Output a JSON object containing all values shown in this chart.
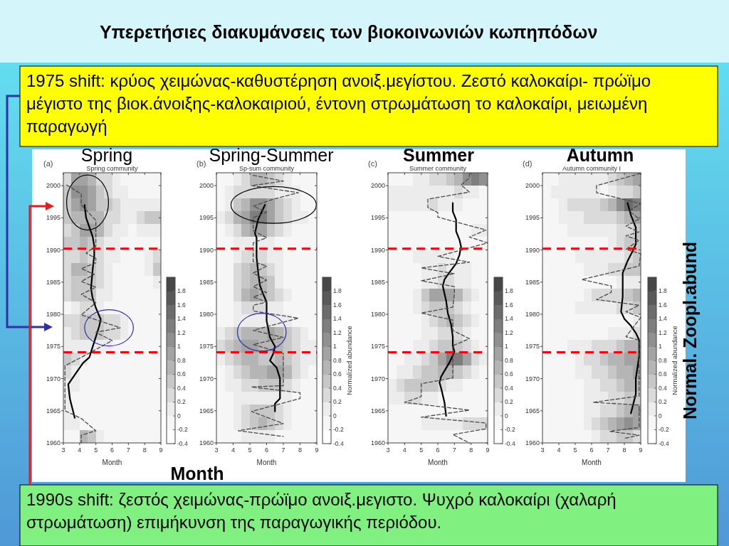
{
  "chart_data": [
    {
      "type": "other",
      "title": "Υπερετήσιες διακυμάνσεις των βιοκοινωνιών κωπηπόδων",
      "annotations": [
        "1975 shift: κρύος χειμώνας-καθυστέρηση ανοιξ.μεγίστου. Ζεστό καλοκαίρι- πρώϊμο μέγιστο της βιοκ.άνοιξης-καλοκαιριού, έντονη στρωμάτωση το καλοκαίρι, μειωμένη παραγωγή"
      ]
    },
    {
      "type": "heatmap",
      "title": "Spring",
      "subtitle": "Spring community",
      "xlabel": "Month",
      "annotations": [
        "(a)"
      ],
      "xlim": [
        3,
        9
      ],
      "ylim": [
        1960,
        2002
      ],
      "xticks": [
        3,
        4,
        5,
        6,
        7,
        8,
        9
      ],
      "yticks": [
        1960,
        1965,
        1970,
        1975,
        1980,
        1985,
        1990,
        1995,
        2000
      ],
      "clim": [
        -0.4,
        2
      ],
      "cticks": [
        -0.4,
        -0.2,
        0,
        0.2,
        0.4,
        0.6,
        0.8,
        1,
        1.2,
        1.4,
        1.6,
        1.8
      ],
      "cells": [
        [
          0.3,
          0.9,
          0.9,
          0.7,
          0.3,
          0.3,
          0.1,
          -0.1,
          -0.1,
          -0.1,
          -0.1,
          -0.1
        ],
        [
          0.5,
          1.1,
          1.1,
          0.9,
          0.5,
          0.3,
          0.1,
          0.1,
          -0.1,
          -0.1,
          -0.1,
          -0.1
        ],
        [
          0.5,
          0.9,
          1.1,
          0.9,
          0.5,
          0.5,
          0.3,
          0.1,
          0.1,
          0.1,
          0.1,
          0.1
        ],
        [
          0.5,
          0.7,
          0.7,
          0.7,
          0.7,
          0.3,
          0.3,
          0.1,
          0.1,
          0.3,
          0.5,
          0.5
        ],
        [
          0.3,
          0.5,
          0.9,
          0.9,
          0.7,
          0.3,
          0.1,
          0.1,
          -0.1,
          0.1,
          0.1,
          0.1
        ],
        [
          0.5,
          0.5,
          0.7,
          0.5,
          0.3,
          0.1,
          0.1,
          -0.1,
          -0.1,
          -0.1,
          -0.1,
          -0.1
        ],
        [
          0.3,
          0.3,
          0.5,
          0.3,
          0.3,
          0.1,
          0.1,
          -0.1,
          -0.1,
          -0.1,
          0.1,
          0.3
        ],
        [
          0.3,
          0.7,
          0.7,
          0.5,
          0.3,
          0.1,
          -0.1,
          -0.1,
          -0.1,
          -0.1,
          0.1,
          0.5
        ],
        [
          0.3,
          0.5,
          0.5,
          0.5,
          0.3,
          0.1,
          -0.1,
          -0.1,
          -0.1,
          -0.1,
          -0.1,
          0.1
        ],
        [
          0.3,
          0.5,
          0.5,
          0.5,
          0.1,
          0.1,
          -0.1,
          -0.1,
          -0.1,
          -0.1,
          -0.1,
          -0.1
        ],
        [
          -0.1,
          0.1,
          0.3,
          0.3,
          0.1,
          -0.1,
          -0.1,
          -0.1,
          -0.1,
          -0.1,
          -0.1,
          -0.1
        ],
        [
          0.3,
          0.3,
          0.5,
          0.5,
          0.5,
          0.3,
          0.3,
          0.1,
          -0.1,
          -0.1,
          -0.1,
          -0.1
        ],
        [
          0.1,
          0.3,
          0.5,
          0.5,
          0.5,
          0.3,
          0.3,
          0.1,
          -0.1,
          -0.1,
          -0.1,
          -0.1
        ],
        [
          0.1,
          0.1,
          0.1,
          0.1,
          0.1,
          0.1,
          -0.1,
          -0.1,
          -0.1,
          -0.1,
          -0.1,
          -0.1
        ],
        [
          0.5,
          0.3,
          0.1,
          -0.1,
          -0.1,
          -0.1,
          -0.1,
          -0.1,
          -0.1,
          -0.1,
          -0.1,
          -0.1
        ],
        [
          0.3,
          0.1,
          -0.1,
          -0.1,
          -0.1,
          -0.1,
          -0.1,
          -0.1,
          -0.1,
          -0.1,
          -0.1,
          -0.1
        ],
        [
          0.1,
          0.1,
          -0.1,
          -0.1,
          -0.1,
          -0.1,
          -0.1,
          -0.1,
          -0.1,
          -0.1,
          -0.1,
          -0.1
        ],
        [
          0.1,
          -0.1,
          -0.1,
          -0.1,
          -0.1,
          -0.1,
          -0.1,
          -0.1,
          -0.1,
          -0.1,
          -0.1,
          -0.1
        ],
        [
          0.1,
          -0.1,
          -0.1,
          -0.1,
          -0.1,
          -0.1,
          -0.1,
          -0.1,
          -0.1,
          -0.1,
          -0.1,
          -0.1
        ],
        [
          0.1,
          0.1,
          -0.1,
          -0.1,
          -0.1,
          -0.1,
          -0.1,
          -0.1,
          -0.1,
          -0.1,
          -0.1,
          -0.1
        ],
        [
          -0.1,
          -0.1,
          0.7,
          0.5,
          0.1,
          -0.1,
          -0.1,
          -0.1,
          -0.1,
          -0.1,
          -0.1,
          -0.1
        ]
      ],
      "series": [
        {
          "type": "line",
          "color": "#000000",
          "line_style": "solid",
          "x": [
            3.7,
            3.4,
            3.3,
            3.6,
            4.2,
            4.6,
            4.9,
            5.2,
            5.3,
            5.0,
            4.8,
            4.7,
            4.8,
            4.9,
            4.9,
            4.8,
            4.4,
            4.3
          ],
          "values": [
            1963.9,
            1966.9,
            1969.1,
            1970.2,
            1972.4,
            1973.3,
            1975.7,
            1978.1,
            1979.2,
            1981,
            1982.5,
            1984,
            1986.9,
            1989.1,
            1990.6,
            1992.1,
            1995,
            1997
          ]
        },
        {
          "type": "line",
          "color": "#4a4a4a",
          "line_style": "dashed",
          "x": [
            3.2,
            4.1,
            4.1,
            5.0,
            5.0,
            4.4,
            5.0,
            5.0,
            4.1,
            4.9,
            4.1,
            5.0,
            4.1,
            5.0,
            4.1,
            6.5,
            5.0,
            6.0,
            4.1,
            3.1,
            3.1,
            4.1,
            5.0,
            4.1,
            4.1
          ],
          "values": [
            2000.1,
            1998.7,
            1997,
            1994.6,
            1990.6,
            1989.5,
            1988.7,
            1988,
            1987.1,
            1986.2,
            1985.1,
            1984.2,
            1983.1,
            1981.8,
            1979.9,
            1977.9,
            1977.2,
            1975.9,
            1973.3,
            1972,
            1965,
            1963.8,
            1961.9,
            1961.2,
            1960
          ]
        }
      ],
      "ref_lines": [
        {
          "axis": "y",
          "value": 1990.2,
          "color": "#ff0000",
          "line_style": "dashed"
        },
        {
          "axis": "y",
          "value": 1974.1,
          "color": "#ff0000",
          "line_style": "dashed"
        }
      ]
    },
    {
      "type": "heatmap",
      "title": "Spring-Summer",
      "subtitle": "Sp-sum community",
      "xlabel": "Month",
      "clabel": "Normalized abundance",
      "annotations": [
        "(b)"
      ],
      "xlim": [
        3,
        9
      ],
      "ylim": [
        1960,
        2002
      ],
      "xticks": [
        3,
        4,
        5,
        6,
        7,
        8,
        9
      ],
      "yticks": [
        1960,
        1965,
        1970,
        1975,
        1980,
        1985,
        1990,
        1995,
        2000
      ],
      "clim": [
        -0.4,
        2
      ],
      "cticks": [
        -0.4,
        -0.2,
        0,
        0.2,
        0.4,
        0.6,
        0.8,
        1,
        1.2,
        1.4,
        1.6,
        1.8
      ],
      "cells": [
        [
          -0.1,
          -0.1,
          0.1,
          0.3,
          0.7,
          0.7,
          0.5,
          0.3,
          0.1,
          -0.1,
          -0.1,
          -0.1
        ],
        [
          -0.1,
          0.1,
          0.3,
          0.3,
          0.3,
          0.3,
          0.3,
          0.1,
          0.1,
          0.1,
          -0.1,
          -0.1
        ],
        [
          -0.1,
          0.1,
          0.5,
          0.7,
          1.1,
          1.1,
          0.9,
          0.5,
          0.3,
          0.1,
          -0.1,
          -0.1
        ],
        [
          0.1,
          0.3,
          0.7,
          0.9,
          1.3,
          1.3,
          0.9,
          0.5,
          0.3,
          0.1,
          0.1,
          -0.1
        ],
        [
          -0.1,
          0.1,
          0.3,
          0.7,
          0.9,
          0.9,
          0.5,
          0.3,
          0.1,
          -0.1,
          -0.1,
          -0.1
        ],
        [
          -0.1,
          -0.1,
          0.1,
          0.1,
          0.1,
          0.1,
          0.1,
          -0.1,
          -0.1,
          -0.1,
          -0.1,
          -0.1
        ],
        [
          -0.1,
          -0.1,
          0.1,
          0.3,
          0.3,
          0.3,
          0.1,
          0.1,
          -0.1,
          -0.1,
          -0.1,
          -0.1
        ],
        [
          -0.1,
          -0.1,
          0.3,
          0.5,
          0.7,
          0.5,
          0.3,
          0.1,
          -0.1,
          -0.1,
          -0.1,
          -0.1
        ],
        [
          -0.1,
          -0.1,
          0.3,
          0.5,
          0.7,
          0.7,
          0.5,
          0.1,
          -0.1,
          -0.1,
          -0.1,
          -0.1
        ],
        [
          -0.1,
          -0.1,
          0.3,
          0.7,
          0.9,
          0.7,
          0.5,
          0.3,
          0.1,
          -0.1,
          -0.1,
          -0.1
        ],
        [
          -0.1,
          -0.1,
          0.1,
          0.3,
          0.3,
          0.3,
          0.1,
          0.1,
          -0.1,
          -0.1,
          -0.1,
          -0.1
        ],
        [
          -0.1,
          -0.1,
          0.1,
          0.1,
          0.1,
          0.1,
          0.1,
          0.1,
          0.1,
          -0.1,
          -0.1,
          -0.1
        ],
        [
          0.1,
          0.3,
          0.5,
          0.7,
          0.7,
          0.7,
          0.9,
          0.7,
          0.5,
          0.3,
          0.1,
          -0.1
        ],
        [
          0.3,
          0.5,
          0.7,
          0.9,
          0.9,
          0.7,
          0.7,
          0.7,
          0.5,
          0.3,
          0.1,
          0.1
        ],
        [
          0.1,
          0.3,
          0.5,
          0.7,
          0.7,
          0.5,
          0.5,
          0.7,
          0.5,
          0.3,
          0.1,
          0.1
        ],
        [
          -0.1,
          0.1,
          0.3,
          0.5,
          0.7,
          0.7,
          0.9,
          0.9,
          0.7,
          0.3,
          0.1,
          -0.1
        ],
        [
          -0.1,
          0.1,
          0.1,
          0.3,
          0.3,
          0.5,
          0.5,
          0.5,
          0.3,
          0.1,
          -0.1,
          -0.1
        ],
        [
          -0.1,
          -0.1,
          0.1,
          0.1,
          0.1,
          0.1,
          0.1,
          0.1,
          0.1,
          -0.1,
          -0.1,
          -0.1
        ],
        [
          -0.1,
          -0.1,
          0.1,
          0.3,
          0.5,
          0.5,
          0.5,
          0.3,
          0.1,
          -0.1,
          -0.1,
          -0.1
        ],
        [
          -0.1,
          -0.1,
          0.1,
          0.3,
          0.5,
          0.7,
          0.5,
          0.3,
          0.1,
          -0.1,
          -0.1,
          -0.1
        ],
        [
          -0.1,
          -0.1,
          -0.1,
          0.1,
          0.1,
          0.1,
          0.1,
          -0.1,
          -0.1,
          -0.1,
          -0.1,
          -0.1
        ]
      ],
      "series": [
        {
          "type": "line",
          "color": "#000000",
          "line_style": "solid",
          "x": [
            6.5,
            6.5,
            6.8,
            6.8,
            6.6,
            6.2,
            6.4,
            6.5,
            6.2,
            6.0,
            6.0,
            6.0,
            5.8,
            5.6,
            5.5,
            5.4,
            5.4,
            5.3,
            5.5,
            5.7,
            5.9
          ],
          "values": [
            1964.9,
            1966.1,
            1966.9,
            1970,
            1971.7,
            1972.8,
            1973.9,
            1975,
            1976.4,
            1979,
            1980.1,
            1981.9,
            1983.1,
            1984.5,
            1986.4,
            1988.9,
            1991.9,
            1992.6,
            1994.8,
            1995.9,
            1997
          ]
        },
        {
          "type": "line",
          "color": "#4a4a4a",
          "line_style": "dashed",
          "x": [
            5.2,
            7.0,
            5.1,
            7.9,
            6.4,
            5.2,
            6.0,
            5.2,
            5.2,
            6.0,
            5.2,
            5.2,
            6.0,
            5.2,
            6.0,
            5.2,
            6.0,
            5.2,
            6.0,
            5.2,
            5.2,
            7.9,
            5.2,
            7.0,
            5.2,
            7.0,
            7.0,
            5.1,
            8.0,
            8.0,
            5.1,
            7.0,
            4.3,
            7.0
          ],
          "values": [
            2001.6,
            2000.7,
            2000,
            1998.9,
            1997.9,
            1996.8,
            1995.9,
            1995,
            1993,
            1991.9,
            1991.1,
            1988.2,
            1987.5,
            1986.4,
            1985.3,
            1984.3,
            1983.4,
            1982.7,
            1981.9,
            1981.4,
            1980.5,
            1979.4,
            1977.5,
            1976.4,
            1975.3,
            1973.9,
            1968.9,
            1968.7,
            1967.8,
            1966.9,
            1964.9,
            1963,
            1961.9,
            1961
          ]
        }
      ],
      "ref_lines": [
        {
          "axis": "y",
          "value": 1990.2,
          "color": "#ff0000",
          "line_style": "dashed"
        },
        {
          "axis": "y",
          "value": 1974.1,
          "color": "#ff0000",
          "line_style": "dashed"
        }
      ]
    },
    {
      "type": "heatmap",
      "title": "Summer",
      "subtitle": "Summer community",
      "xlabel": "Month",
      "annotations": [
        "(c)"
      ],
      "xlim": [
        3,
        9
      ],
      "ylim": [
        1960,
        2002
      ],
      "xticks": [
        3,
        4,
        5,
        6,
        7,
        8,
        9
      ],
      "yticks": [
        1960,
        1965,
        1970,
        1975,
        1980,
        1985,
        1990,
        1995,
        2000
      ],
      "clim": [
        -0.4,
        2
      ],
      "cticks": [
        -0.4,
        -0.2,
        0,
        0.2,
        0.4,
        0.6,
        0.8,
        1,
        1.2,
        1.4,
        1.6,
        1.8
      ],
      "cells": [
        [
          -0.1,
          -0.1,
          -0.1,
          0.1,
          0.1,
          0.3,
          0.3,
          0.5,
          0.7,
          1.1,
          1.3,
          1.1
        ],
        [
          0.1,
          0.1,
          0.1,
          0.1,
          0.1,
          0.1,
          0.1,
          0.1,
          0.3,
          0.1,
          0.1,
          -0.1
        ],
        [
          0.1,
          0.1,
          0.1,
          0.1,
          0.1,
          0.3,
          0.1,
          0.1,
          0.1,
          -0.1,
          -0.1,
          -0.1
        ],
        [
          -0.1,
          -0.1,
          -0.1,
          -0.1,
          -0.1,
          -0.1,
          -0.1,
          -0.1,
          -0.1,
          -0.1,
          -0.1,
          -0.1
        ],
        [
          -0.1,
          -0.1,
          -0.1,
          -0.1,
          -0.1,
          -0.1,
          -0.1,
          -0.1,
          -0.1,
          -0.1,
          0.1,
          0.1
        ],
        [
          -0.1,
          -0.1,
          -0.1,
          -0.1,
          -0.1,
          -0.1,
          -0.1,
          -0.1,
          -0.1,
          -0.1,
          -0.1,
          -0.1
        ],
        [
          -0.1,
          -0.1,
          -0.1,
          0.1,
          0.1,
          0.1,
          0.1,
          0.1,
          -0.1,
          -0.1,
          -0.1,
          -0.1
        ],
        [
          -0.1,
          -0.1,
          -0.1,
          -0.1,
          0.1,
          0.1,
          0.3,
          0.1,
          0.1,
          0.1,
          -0.1,
          -0.1
        ],
        [
          -0.1,
          -0.1,
          -0.1,
          -0.1,
          0.1,
          0.1,
          0.3,
          0.3,
          0.1,
          0.1,
          -0.1,
          -0.1
        ],
        [
          -0.1,
          -0.1,
          -0.1,
          0.1,
          0.5,
          0.9,
          0.9,
          0.9,
          0.7,
          0.3,
          0.1,
          -0.1
        ],
        [
          -0.1,
          -0.1,
          -0.1,
          0.1,
          0.3,
          0.5,
          0.5,
          0.5,
          0.3,
          0.1,
          -0.1,
          -0.1
        ],
        [
          -0.1,
          -0.1,
          -0.1,
          -0.1,
          0.1,
          0.3,
          0.5,
          0.7,
          0.5,
          0.3,
          0.1,
          -0.1
        ],
        [
          -0.1,
          -0.1,
          -0.1,
          -0.1,
          0.1,
          0.1,
          0.3,
          0.3,
          0.3,
          0.1,
          -0.1,
          -0.1
        ],
        [
          -0.1,
          -0.1,
          -0.1,
          0.1,
          0.1,
          0.3,
          0.5,
          0.5,
          0.5,
          0.3,
          0.1,
          -0.1
        ],
        [
          -0.1,
          -0.1,
          0.1,
          0.1,
          0.3,
          0.5,
          0.9,
          1.3,
          1.3,
          0.9,
          0.3,
          0.1
        ],
        [
          -0.1,
          0.1,
          0.1,
          0.3,
          0.5,
          0.5,
          0.7,
          0.7,
          0.5,
          0.3,
          0.1,
          -0.1
        ],
        [
          0.1,
          0.3,
          0.5,
          0.5,
          0.5,
          0.5,
          0.3,
          0.1,
          0.1,
          -0.1,
          -0.1,
          -0.1
        ],
        [
          0.1,
          0.1,
          0.3,
          0.3,
          0.1,
          0.1,
          -0.1,
          -0.1,
          -0.1,
          -0.1,
          -0.1,
          -0.1
        ],
        [
          -0.1,
          -0.1,
          -0.1,
          -0.1,
          -0.1,
          -0.1,
          -0.1,
          -0.1,
          -0.1,
          -0.1,
          -0.1,
          -0.1
        ],
        [
          -0.1,
          -0.1,
          -0.1,
          -0.1,
          0.1,
          0.1,
          0.1,
          0.1,
          0.1,
          0.3,
          0.3,
          0.3
        ],
        [
          -0.1,
          -0.1,
          -0.1,
          -0.1,
          -0.1,
          -0.1,
          -0.1,
          -0.1,
          -0.1,
          -0.1,
          -0.1,
          -0.1
        ]
      ],
      "series": [
        {
          "type": "line",
          "color": "#000000",
          "line_style": "solid",
          "x": [
            6.5,
            6.4,
            6.2,
            6.1,
            6.2,
            6.4,
            6.7,
            6.9,
            7.0,
            6.9,
            6.9,
            6.8,
            6.6,
            6.5,
            6.4,
            6.3,
            6.4,
            6.7,
            7.1,
            7.3,
            7.4,
            7.3,
            7.1,
            7.1,
            7.1,
            6.9,
            6.9
          ],
          "values": [
            1964.2,
            1966.3,
            1968.5,
            1969.4,
            1970.3,
            1971.2,
            1972.5,
            1973.6,
            1974.2,
            1975.1,
            1976.5,
            1978.4,
            1980.2,
            1982.1,
            1983.2,
            1984.4,
            1985.4,
            1986.5,
            1987.9,
            1989.2,
            1990.5,
            1991.6,
            1992.9,
            1993.8,
            1994.7,
            1996,
            1997.3
          ]
        },
        {
          "type": "line",
          "color": "#4a4a4a",
          "line_style": "dashed",
          "x": [
            7.9,
            7.9,
            7.4,
            7.9,
            5.4,
            5.4,
            6.0,
            6.0,
            8.9,
            7.9,
            9.0,
            6.0,
            7.9,
            5.0,
            7.0,
            5.0,
            7.0,
            7.0,
            6.9,
            5.0,
            6.9,
            6.9,
            7.9,
            6.9,
            6.9,
            5.0,
            5.0,
            4.0,
            7.9,
            5.0,
            8.9,
            8.9,
            6.9,
            7.9
          ],
          "values": [
            2001.9,
            2001.2,
            2000.1,
            1999,
            1997.9,
            1996.6,
            1995.8,
            1995.1,
            1993.1,
            1992,
            1991.1,
            1989,
            1988.1,
            1987.2,
            1986.3,
            1985.2,
            1984.3,
            1983.2,
            1981.1,
            1980.2,
            1979.1,
            1977.5,
            1976.2,
            1975.1,
            1970.1,
            1969.2,
            1967.2,
            1966.3,
            1965.1,
            1964,
            1963.1,
            1962.2,
            1961.3,
            1960
          ]
        }
      ],
      "ref_lines": [
        {
          "axis": "y",
          "value": 1990.2,
          "color": "#ff0000",
          "line_style": "dashed"
        },
        {
          "axis": "y",
          "value": 1974.1,
          "color": "#ff0000",
          "line_style": "dashed"
        }
      ]
    },
    {
      "type": "heatmap",
      "title": "Autumn",
      "subtitle": "Autumn community I",
      "xlabel": "Month",
      "clabel": "Normalized abundance",
      "annotations": [
        "(d)"
      ],
      "xlim": [
        3,
        9
      ],
      "ylim": [
        1960,
        2002
      ],
      "xticks": [
        3,
        4,
        5,
        6,
        7,
        8,
        9
      ],
      "yticks": [
        1960,
        1965,
        1970,
        1975,
        1980,
        1985,
        1990,
        1995,
        2000
      ],
      "clim": [
        -0.4,
        2
      ],
      "cticks": [
        -0.4,
        -0.2,
        0,
        0.2,
        0.4,
        0.6,
        0.8,
        1,
        1.2,
        1.4,
        1.6,
        1.8
      ],
      "cells": [
        [
          -0.1,
          -0.1,
          0.1,
          0.1,
          0.1,
          0.1,
          0.1,
          0.1,
          0.3,
          0.5,
          0.7,
          0.9
        ],
        [
          -0.1,
          0.1,
          0.1,
          0.1,
          0.1,
          0.1,
          0.1,
          -0.1,
          0.1,
          0.3,
          0.3,
          0.5
        ],
        [
          -0.1,
          -0.1,
          0.1,
          0.3,
          0.3,
          0.3,
          0.3,
          0.5,
          0.7,
          1.1,
          1.5,
          1.3
        ],
        [
          -0.1,
          -0.1,
          0.1,
          0.1,
          0.1,
          0.3,
          0.3,
          0.3,
          0.3,
          0.5,
          0.7,
          0.9
        ],
        [
          -0.1,
          -0.1,
          -0.1,
          0.1,
          0.1,
          0.1,
          0.1,
          0.1,
          0.1,
          0.3,
          0.3,
          0.5
        ],
        [
          -0.1,
          -0.1,
          -0.1,
          -0.1,
          -0.1,
          -0.1,
          -0.1,
          -0.1,
          0.1,
          0.3,
          0.5,
          0.5
        ],
        [
          -0.1,
          -0.1,
          -0.1,
          -0.1,
          0.1,
          0.1,
          0.1,
          0.1,
          0.1,
          0.1,
          0.3,
          0.5
        ],
        [
          -0.1,
          -0.1,
          -0.1,
          -0.1,
          -0.1,
          0.1,
          0.1,
          0.1,
          0.3,
          0.3,
          0.5,
          0.5
        ],
        [
          -0.1,
          -0.1,
          -0.1,
          -0.1,
          -0.1,
          -0.1,
          -0.1,
          -0.1,
          -0.1,
          0.1,
          0.1,
          0.1
        ],
        [
          -0.1,
          -0.1,
          -0.1,
          -0.1,
          -0.1,
          0.1,
          0.3,
          0.3,
          0.3,
          0.3,
          0.5,
          0.7
        ],
        [
          -0.1,
          -0.1,
          -0.1,
          -0.1,
          0.1,
          0.1,
          0.1,
          0.1,
          0.1,
          0.3,
          0.3,
          0.5
        ],
        [
          -0.1,
          -0.1,
          -0.1,
          -0.1,
          -0.1,
          -0.1,
          -0.1,
          -0.1,
          -0.1,
          -0.1,
          -0.1,
          0.1
        ],
        [
          -0.1,
          -0.1,
          -0.1,
          -0.1,
          -0.1,
          -0.1,
          -0.1,
          -0.1,
          0.1,
          0.1,
          0.1,
          0.3
        ],
        [
          -0.1,
          -0.1,
          -0.1,
          0.1,
          0.1,
          0.1,
          0.3,
          0.3,
          0.3,
          0.5,
          0.7,
          0.7
        ],
        [
          -0.1,
          -0.1,
          -0.1,
          -0.1,
          0.1,
          0.3,
          0.3,
          0.5,
          0.7,
          0.7,
          0.9,
          0.9
        ],
        [
          -0.1,
          -0.1,
          -0.1,
          -0.1,
          0.1,
          0.1,
          0.3,
          0.3,
          0.5,
          0.7,
          0.7,
          0.9
        ],
        [
          -0.1,
          -0.1,
          -0.1,
          -0.1,
          -0.1,
          0.1,
          0.1,
          0.3,
          0.3,
          0.5,
          0.7,
          0.7
        ],
        [
          -0.1,
          -0.1,
          -0.1,
          -0.1,
          -0.1,
          0.1,
          0.1,
          0.1,
          0.3,
          0.3,
          0.5,
          0.5
        ],
        [
          -0.1,
          -0.1,
          -0.1,
          -0.1,
          -0.1,
          0.1,
          0.1,
          0.3,
          0.3,
          0.5,
          0.7,
          0.9
        ],
        [
          -0.1,
          -0.1,
          -0.1,
          -0.1,
          -0.1,
          0.1,
          0.3,
          0.5,
          0.7,
          0.9,
          1.1,
          0.9
        ],
        [
          -0.1,
          -0.1,
          -0.1,
          -0.1,
          -0.1,
          -0.1,
          0.1,
          0.3,
          0.3,
          0.5,
          0.5,
          0.3
        ]
      ],
      "series": [
        {
          "type": "line",
          "color": "#000000",
          "line_style": "solid",
          "x": [
            8.4,
            8.7,
            8.7,
            8.9,
            8.9,
            8.7,
            8.4,
            8.0,
            7.8,
            7.9,
            7.9,
            8.2,
            8.5,
            8.7,
            8.7,
            8.4,
            8.2
          ],
          "values": [
            1964.6,
            1967.6,
            1970,
            1973.4,
            1976,
            1977.1,
            1978.2,
            1979.3,
            1980.4,
            1982.7,
            1986.4,
            1988.3,
            1989.8,
            1990.9,
            1993.5,
            1995.4,
            1997.3
          ]
        },
        {
          "type": "line",
          "color": "#4a4a4a",
          "line_style": "dashed",
          "x": [
            9.0,
            6.3,
            6.3,
            9.0,
            8.3,
            8.9,
            8.1,
            8.9,
            8.1,
            8.9,
            8.1,
            9.0,
            8.9,
            5.4,
            7.2,
            7.2,
            6.3,
            8.9,
            8.1,
            9.0,
            8.1,
            8.9,
            8.9,
            6.1,
            8.9,
            8.9,
            7.1,
            8.9,
            8.0
          ],
          "values": [
            2001.9,
            2000,
            1998.9,
            1997.2,
            1996.1,
            1994.8,
            1993.7,
            1992.8,
            1992.2,
            1991.5,
            1990.1,
            1989.4,
            1987.5,
            1985.4,
            1984.4,
            1983.4,
            1982.3,
            1981.4,
            1980.4,
            1979.5,
            1976.5,
            1976,
            1967.3,
            1966.3,
            1965.9,
            1962.4,
            1961.8,
            1961.2,
            1960.7
          ]
        }
      ],
      "ref_lines": [
        {
          "axis": "y",
          "value": 1990.2,
          "color": "#ff0000",
          "line_style": "dashed"
        },
        {
          "axis": "y",
          "value": 1974.1,
          "color": "#ff0000",
          "line_style": "dashed"
        }
      ]
    },
    {
      "type": "other",
      "xlabel": "Month",
      "ylabel": "Normal. Zoopl.abund",
      "annotations": [
        "1990s shift: ζεστός χειμώνας-πρώϊμο ανοιξ.μεγιστο. Ψυχρό καλοκαίρι (χαλαρή στρωμάτωση) επιμήκυνση της παραγωγικής περιόδου."
      ]
    }
  ]
}
